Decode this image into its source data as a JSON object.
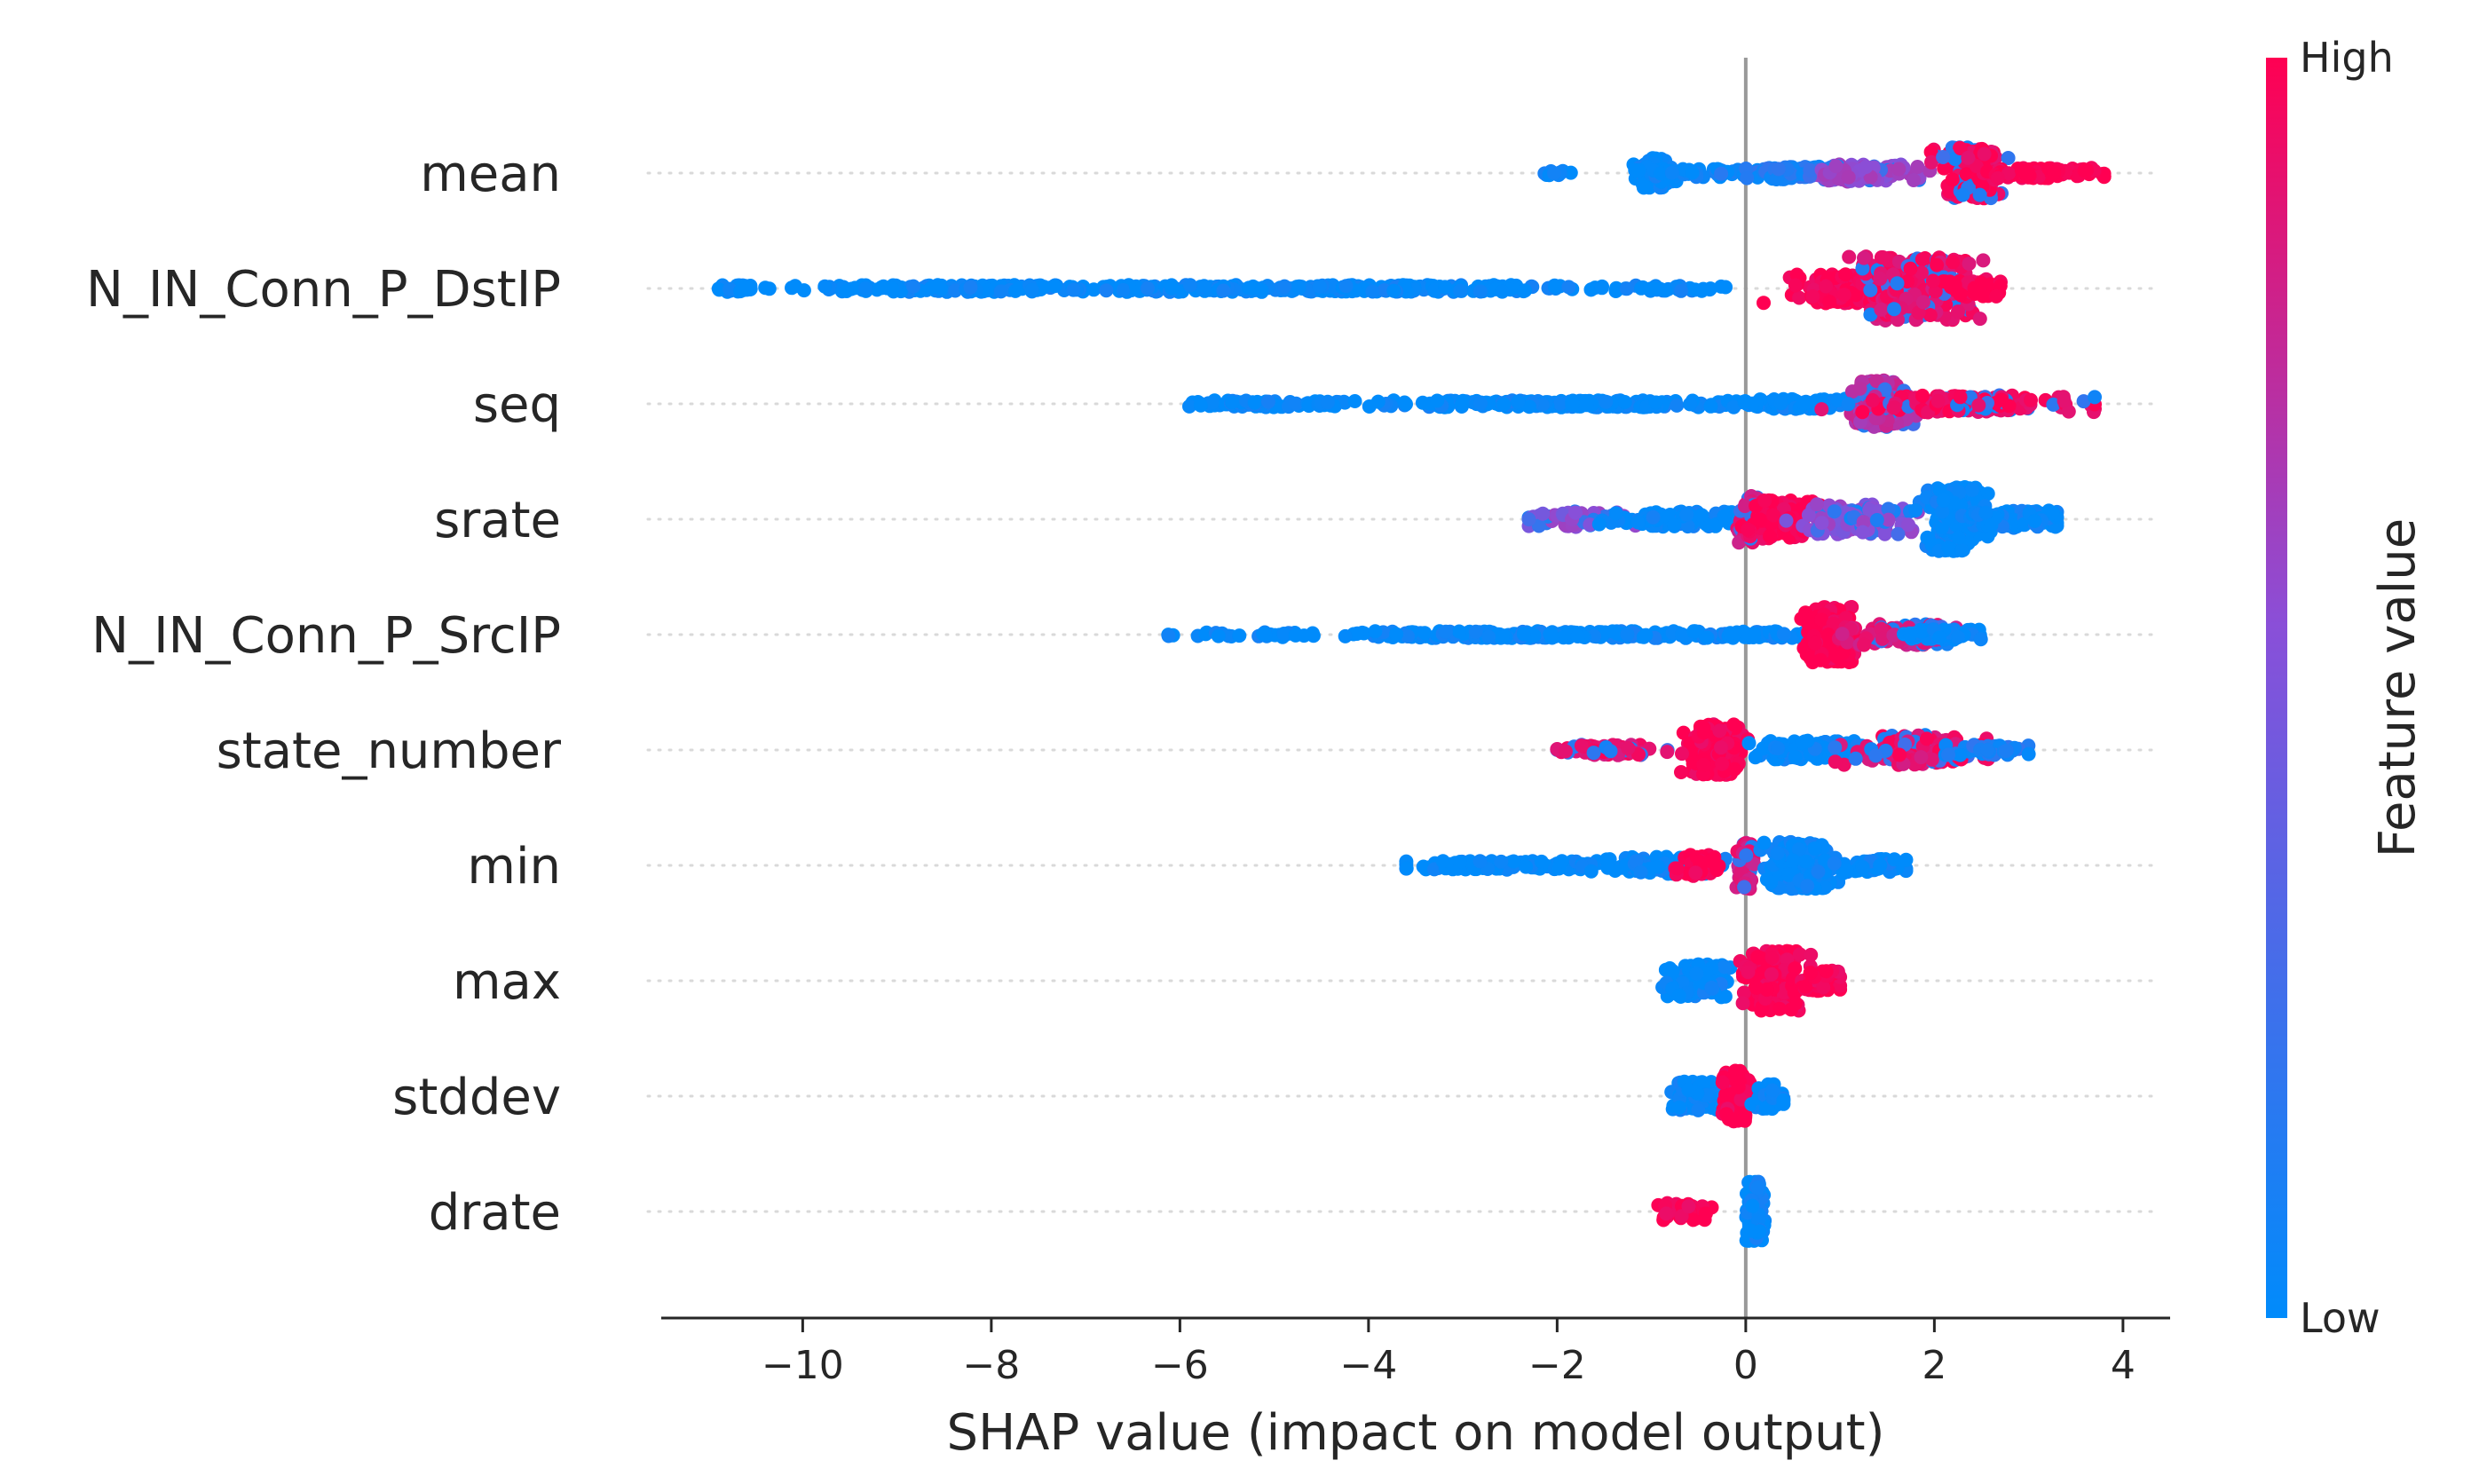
{
  "chart_data": {
    "type": "scatter",
    "subtype": "shap-beeswarm",
    "xlabel": "SHAP value (impact on model output)",
    "xlim": [
      -11.5,
      4.5
    ],
    "xticks": [
      -10,
      -8,
      -6,
      -4,
      -2,
      0,
      2,
      4
    ],
    "xtick_labels": [
      "−10",
      "−8",
      "−6",
      "−4",
      "−2",
      "0",
      "2",
      "4"
    ],
    "colorbar": {
      "title": "Feature value",
      "high_label": "High",
      "low_label": "Low",
      "high_color": "#ff0052",
      "mid_color": "#8a4fd8",
      "low_color": "#008bfb"
    },
    "features": [
      {
        "name": "mean",
        "range": [
          -2.2,
          3.8
        ],
        "clusters": [
          {
            "x": -2.0,
            "spread": 0.15,
            "width": 0.05,
            "value": 0.0,
            "count": 10
          },
          {
            "x": -1.0,
            "spread": 0.2,
            "width": 0.35,
            "value": 0.0,
            "count": 90
          },
          {
            "x": -0.6,
            "spread": 0.5,
            "width": 0.1,
            "value": 0.0,
            "count": 50
          },
          {
            "x": 0.6,
            "spread": 0.6,
            "width": 0.15,
            "value": 0.1,
            "count": 120
          },
          {
            "x": 1.3,
            "spread": 0.5,
            "width": 0.2,
            "value": 0.55,
            "count": 120
          },
          {
            "x": 2.4,
            "spread": 0.3,
            "width": 0.6,
            "value": 0.95,
            "count": 220
          },
          {
            "x": 3.2,
            "spread": 0.6,
            "width": 0.12,
            "value": 1.0,
            "count": 90
          }
        ]
      },
      {
        "name": "N_IN_Conn_P_DstIP",
        "range": [
          -11.0,
          2.7
        ],
        "clusters": [
          {
            "x": -10.7,
            "spread": 0.25,
            "width": 0.08,
            "value": 0.0,
            "count": 30
          },
          {
            "x": -8.5,
            "spread": 1.3,
            "width": 0.08,
            "value": 0.0,
            "count": 120
          },
          {
            "x": -4.5,
            "spread": 2.8,
            "width": 0.08,
            "value": 0.0,
            "count": 320
          },
          {
            "x": -0.8,
            "spread": 0.6,
            "width": 0.06,
            "value": 0.0,
            "count": 30
          },
          {
            "x": 1.0,
            "spread": 0.5,
            "width": 0.35,
            "value": 1.0,
            "count": 140
          },
          {
            "x": 1.8,
            "spread": 0.5,
            "width": 0.75,
            "value": 0.9,
            "count": 260
          },
          {
            "x": 2.4,
            "spread": 0.3,
            "width": 0.2,
            "value": 1.0,
            "count": 50
          }
        ]
      },
      {
        "name": "seq",
        "range": [
          -5.9,
          3.7
        ],
        "clusters": [
          {
            "x": -5.2,
            "spread": 0.7,
            "width": 0.08,
            "value": 0.0,
            "count": 60
          },
          {
            "x": -4.5,
            "spread": 0.25,
            "width": 0.06,
            "value": 0.0,
            "count": 20
          },
          {
            "x": -1.5,
            "spread": 1.8,
            "width": 0.08,
            "value": 0.0,
            "count": 260
          },
          {
            "x": 0.6,
            "spread": 0.5,
            "width": 0.12,
            "value": 0.0,
            "count": 70
          },
          {
            "x": 1.4,
            "spread": 0.25,
            "width": 0.55,
            "value": 0.7,
            "count": 220
          },
          {
            "x": 2.5,
            "spread": 1.1,
            "width": 0.2,
            "value": 0.95,
            "count": 140
          }
        ]
      },
      {
        "name": "srate",
        "range": [
          -2.3,
          3.3
        ],
        "clusters": [
          {
            "x": -1.8,
            "spread": 0.5,
            "width": 0.18,
            "value": 0.5,
            "count": 60
          },
          {
            "x": -0.8,
            "spread": 0.6,
            "width": 0.18,
            "value": 0.0,
            "count": 90
          },
          {
            "x": 0.1,
            "spread": 0.15,
            "width": 0.55,
            "value": 0.85,
            "count": 90
          },
          {
            "x": 0.4,
            "spread": 0.3,
            "width": 0.45,
            "value": 1.0,
            "count": 110
          },
          {
            "x": 1.2,
            "spread": 0.5,
            "width": 0.35,
            "value": 0.5,
            "count": 130
          },
          {
            "x": 2.2,
            "spread": 0.25,
            "width": 0.75,
            "value": 0.0,
            "count": 240
          },
          {
            "x": 2.9,
            "spread": 0.4,
            "width": 0.2,
            "value": 0.0,
            "count": 90
          }
        ]
      },
      {
        "name": "N_IN_Conn_P_SrcIP",
        "range": [
          -6.2,
          2.5
        ],
        "clusters": [
          {
            "x": -6.1,
            "spread": 0.05,
            "width": 0.05,
            "value": 0.0,
            "count": 3
          },
          {
            "x": -5.6,
            "spread": 0.2,
            "width": 0.05,
            "value": 0.0,
            "count": 8
          },
          {
            "x": -4.9,
            "spread": 0.3,
            "width": 0.06,
            "value": 0.0,
            "count": 16
          },
          {
            "x": -2.2,
            "spread": 1.8,
            "width": 0.08,
            "value": 0.0,
            "count": 220
          },
          {
            "x": 0.1,
            "spread": 0.5,
            "width": 0.08,
            "value": 0.0,
            "count": 60
          },
          {
            "x": 0.9,
            "spread": 0.2,
            "width": 0.65,
            "value": 1.0,
            "count": 210
          },
          {
            "x": 1.6,
            "spread": 0.5,
            "width": 0.25,
            "value": 0.85,
            "count": 100
          },
          {
            "x": 2.1,
            "spread": 0.4,
            "width": 0.12,
            "value": 0.0,
            "count": 60
          }
        ]
      },
      {
        "name": "state_number",
        "range": [
          -2.0,
          3.0
        ],
        "clusters": [
          {
            "x": -1.5,
            "spread": 0.5,
            "width": 0.12,
            "value": 0.9,
            "count": 80
          },
          {
            "x": -0.3,
            "spread": 0.25,
            "width": 0.6,
            "value": 1.0,
            "count": 220
          },
          {
            "x": 0.6,
            "spread": 0.5,
            "width": 0.22,
            "value": 0.0,
            "count": 120
          },
          {
            "x": 1.8,
            "spread": 0.6,
            "width": 0.35,
            "value": 0.9,
            "count": 140
          },
          {
            "x": 2.6,
            "spread": 0.4,
            "width": 0.12,
            "value": 0.1,
            "count": 50
          }
        ]
      },
      {
        "name": "min",
        "range": [
          -3.6,
          1.7
        ],
        "clusters": [
          {
            "x": -2.6,
            "spread": 0.9,
            "width": 0.1,
            "value": 0.0,
            "count": 120
          },
          {
            "x": -0.9,
            "spread": 0.6,
            "width": 0.2,
            "value": 0.0,
            "count": 100
          },
          {
            "x": -0.5,
            "spread": 0.2,
            "width": 0.25,
            "value": 1.0,
            "count": 50
          },
          {
            "x": 0.0,
            "spread": 0.08,
            "width": 0.55,
            "value": 0.85,
            "count": 90
          },
          {
            "x": 0.6,
            "spread": 0.3,
            "width": 0.55,
            "value": 0.0,
            "count": 220
          },
          {
            "x": 1.3,
            "spread": 0.4,
            "width": 0.15,
            "value": 0.0,
            "count": 60
          }
        ]
      },
      {
        "name": "max",
        "range": [
          -1.0,
          1.0
        ],
        "clusters": [
          {
            "x": -0.5,
            "spread": 0.4,
            "width": 0.4,
            "value": 0.0,
            "count": 110
          },
          {
            "x": 0.3,
            "spread": 0.25,
            "width": 0.7,
            "value": 1.0,
            "count": 200
          },
          {
            "x": 0.8,
            "spread": 0.2,
            "width": 0.25,
            "value": 1.0,
            "count": 50
          }
        ]
      },
      {
        "name": "stddev",
        "range": [
          -0.9,
          0.4
        ],
        "clusters": [
          {
            "x": -0.4,
            "spread": 0.35,
            "width": 0.35,
            "value": 0.0,
            "count": 140
          },
          {
            "x": -0.1,
            "spread": 0.12,
            "width": 0.6,
            "value": 1.0,
            "count": 110
          },
          {
            "x": 0.25,
            "spread": 0.15,
            "width": 0.3,
            "value": 0.0,
            "count": 40
          }
        ]
      },
      {
        "name": "drate",
        "range": [
          -1.0,
          0.2
        ],
        "clusters": [
          {
            "x": -0.7,
            "spread": 0.25,
            "width": 0.2,
            "value": 1.0,
            "count": 50
          },
          {
            "x": 0.1,
            "spread": 0.08,
            "width": 0.7,
            "value": 0.0,
            "count": 150
          }
        ]
      }
    ]
  }
}
